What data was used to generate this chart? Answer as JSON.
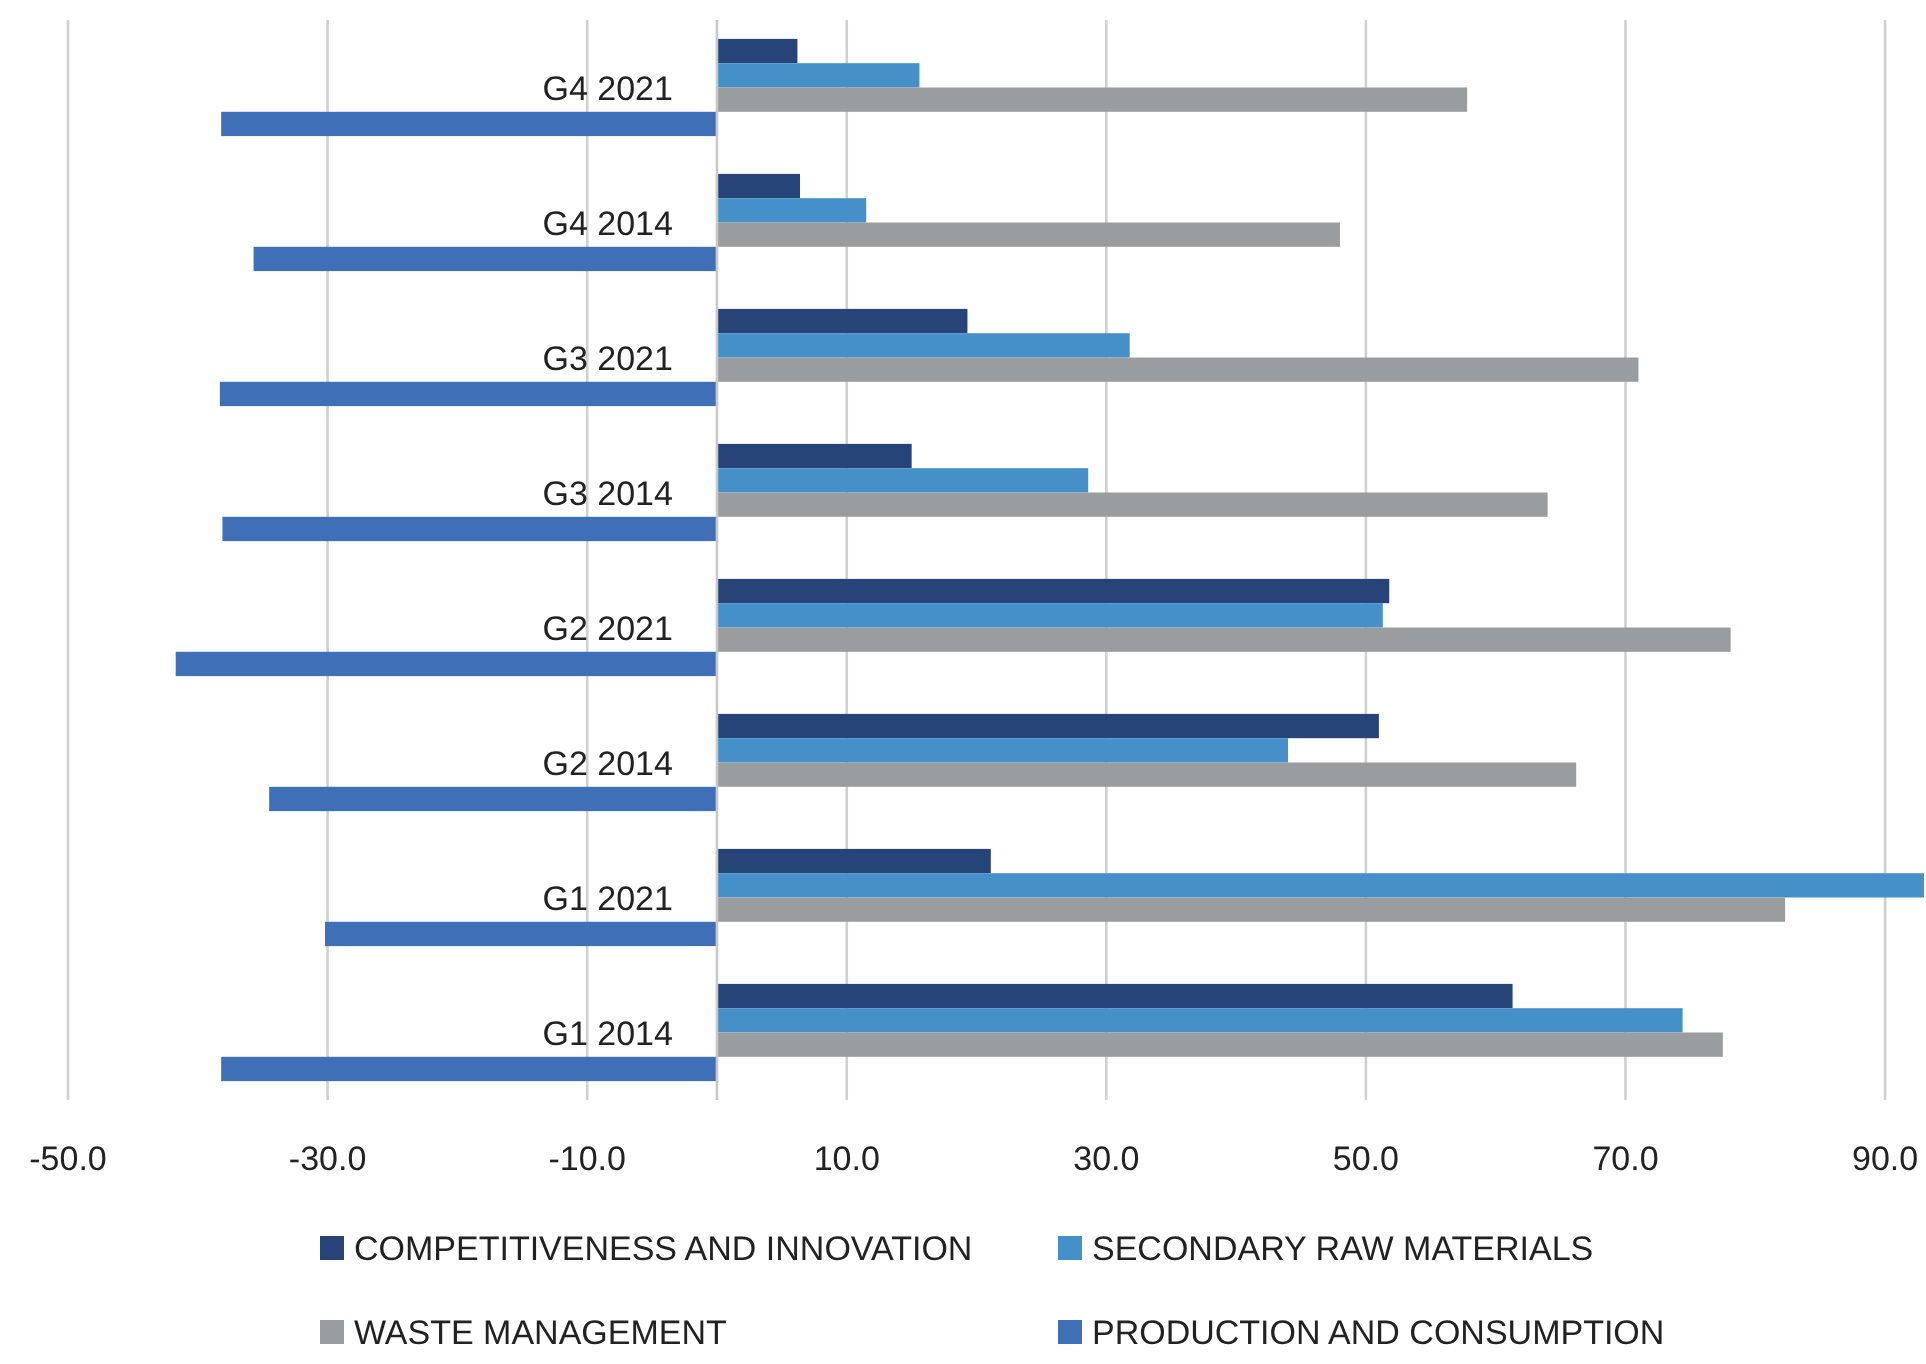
{
  "chart_data": {
    "type": "bar",
    "orientation": "horizontal",
    "categories": [
      "G4 2021",
      "G4 2014",
      "G3 2021",
      "G3 2014",
      "G2 2021",
      "G2 2014",
      "G1 2021",
      "G1 2014"
    ],
    "series": [
      {
        "name": "COMPETITIVENESS AND INNOVATION",
        "color": "#264478",
        "values": [
          6.2,
          6.4,
          19.3,
          15.0,
          51.8,
          51.0,
          21.1,
          61.3
        ]
      },
      {
        "name": "SECONDARY RAW MATERIALS",
        "color": "#4590c9",
        "values": [
          15.6,
          11.5,
          31.8,
          28.6,
          51.3,
          44.0,
          93.0,
          74.4
        ]
      },
      {
        "name": "WASTE MANAGEMENT",
        "color": "#9a9da0",
        "values": [
          57.8,
          48.0,
          71.0,
          64.0,
          78.1,
          66.2,
          82.3,
          77.5
        ]
      },
      {
        "name": "PRODUCTION AND CONSUMPTION",
        "color": "#3f6fb6",
        "values": [
          -38.2,
          -35.7,
          -38.3,
          -38.1,
          -41.7,
          -34.5,
          -30.2,
          -38.2
        ]
      }
    ],
    "xlim": [
      -50,
      93
    ],
    "xticks": [
      {
        "value": -50,
        "label": "-50.0"
      },
      {
        "value": -30,
        "label": "-30.0"
      },
      {
        "value": -10,
        "label": "-10.0"
      },
      {
        "value": 10,
        "label": "10.0"
      },
      {
        "value": 30,
        "label": "30.0"
      },
      {
        "value": 50,
        "label": "50.0"
      },
      {
        "value": 70,
        "label": "70.0"
      },
      {
        "value": 90,
        "label": "90.0"
      }
    ],
    "grid": "x",
    "legend": "bottom"
  }
}
